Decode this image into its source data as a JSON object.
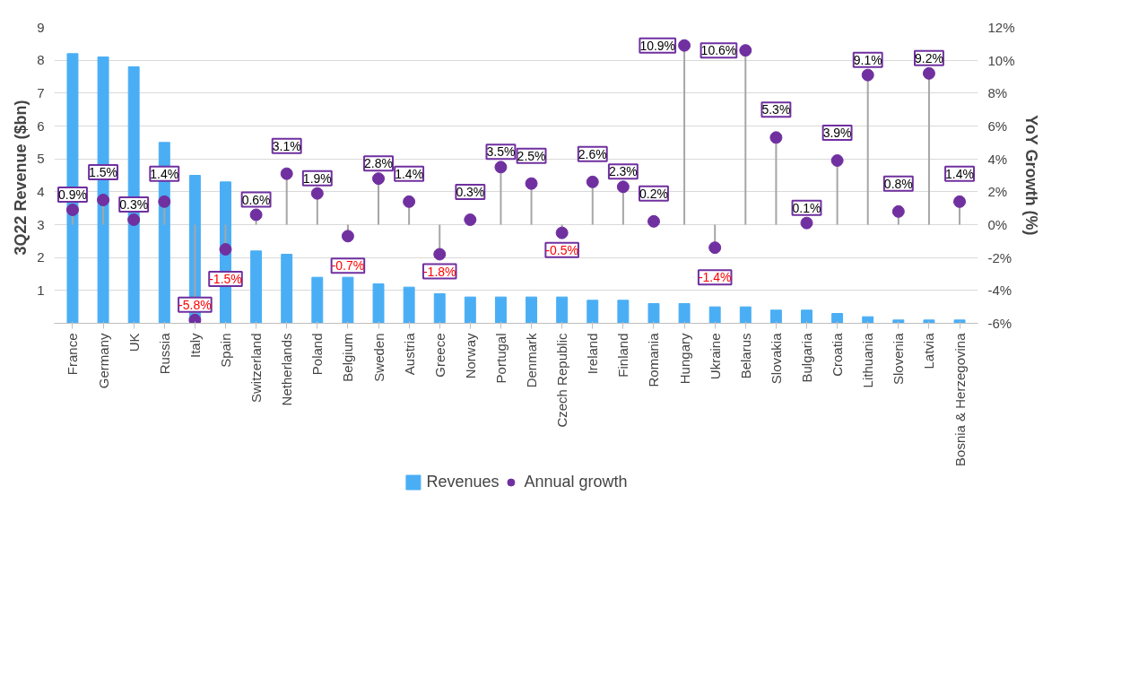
{
  "chart_data": {
    "type": "bar",
    "categories": [
      "France",
      "Germany",
      "UK",
      "Russia",
      "Italy",
      "Spain",
      "Switzerland",
      "Netherlands",
      "Poland",
      "Belgium",
      "Sweden",
      "Austria",
      "Greece",
      "Norway",
      "Portugal",
      "Denmark",
      "Czech Republic",
      "Ireland",
      "Finland",
      "Romania",
      "Hungary",
      "Ukraine",
      "Belarus",
      "Slovakia",
      "Bulgaria",
      "Croatia",
      "Lithuania",
      "Slovenia",
      "Latvia",
      "Bosnia & Herzegovina"
    ],
    "series": [
      {
        "name": "Revenues",
        "color": "#4aaef5",
        "values": [
          8.2,
          8.1,
          7.8,
          5.5,
          4.5,
          4.3,
          2.2,
          2.1,
          1.4,
          1.4,
          1.2,
          1.1,
          0.9,
          0.8,
          0.8,
          0.8,
          0.8,
          0.7,
          0.7,
          0.6,
          0.6,
          0.5,
          0.5,
          0.4,
          0.4,
          0.3,
          0.2,
          0.1,
          0.1,
          0.1
        ]
      },
      {
        "name": "Annual growth",
        "type": "lollipop",
        "axis": "y2",
        "color": "#7030a0",
        "marker": "circle",
        "values": [
          0.9,
          1.5,
          0.3,
          1.4,
          -5.8,
          -1.5,
          0.6,
          3.1,
          1.9,
          -0.7,
          2.8,
          1.4,
          -1.8,
          0.3,
          3.5,
          2.5,
          -0.5,
          2.6,
          2.3,
          0.2,
          10.9,
          -1.4,
          10.6,
          5.3,
          0.1,
          3.9,
          9.1,
          0.8,
          9.2,
          1.4
        ],
        "value_labels": [
          "0.9%",
          "1.5%",
          "0.3%",
          "1.4%",
          "-5.8%",
          "-1.5%",
          "0.6%",
          "3.1%",
          "1.9%",
          "-0.7%",
          "2.8%",
          "1.4%",
          "-1.8%",
          "0.3%",
          "3.5%",
          "2.5%",
          "-0.5%",
          "2.6%",
          "2.3%",
          "0.2%",
          "10.9%",
          "-1.4%",
          "10.6%",
          "5.3%",
          "0.1%",
          "3.9%",
          "9.1%",
          "0.8%",
          "9.2%",
          "1.4%"
        ]
      }
    ],
    "ylabel": "3Q22  Revenue ($bn)",
    "y2label": "YoY Growth (%)",
    "ylim": [
      0,
      9
    ],
    "yticks": [
      1,
      2,
      3,
      4,
      5,
      6,
      7,
      8,
      9
    ],
    "y2lim": [
      -6,
      12
    ],
    "y2ticks": [
      {
        "value": -6,
        "label": "-6%"
      },
      {
        "value": -4,
        "label": "-4%"
      },
      {
        "value": -2,
        "label": "-2%"
      },
      {
        "value": 0,
        "label": "0%"
      },
      {
        "value": 2,
        "label": "2%"
      },
      {
        "value": 4,
        "label": "4%"
      },
      {
        "value": 6,
        "label": "6%"
      },
      {
        "value": 8,
        "label": "8%"
      },
      {
        "value": 10,
        "label": "10%"
      },
      {
        "value": 12,
        "label": "12%"
      }
    ],
    "grid": "y",
    "legend": "bottom"
  }
}
